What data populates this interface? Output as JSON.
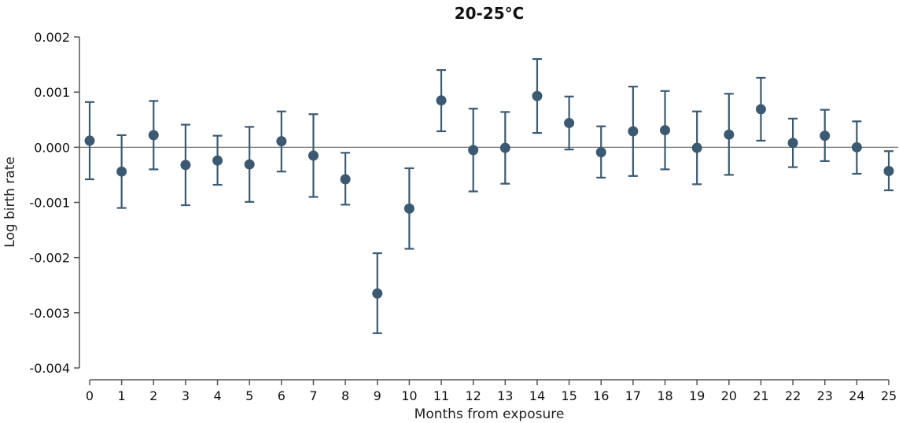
{
  "chart_data": {
    "type": "scatter",
    "title": "20-25°C",
    "xlabel": "Months from exposure",
    "ylabel": "Log birth rate",
    "x": [
      0,
      1,
      2,
      3,
      4,
      5,
      6,
      7,
      8,
      9,
      10,
      11,
      12,
      13,
      14,
      15,
      16,
      17,
      18,
      19,
      20,
      21,
      22,
      23,
      24,
      25
    ],
    "y": [
      0.00012,
      -0.00044,
      0.00022,
      -0.00032,
      -0.00024,
      -0.00031,
      0.00011,
      -0.00015,
      -0.00058,
      -0.00265,
      -0.00111,
      0.00085,
      -5e-05,
      -1e-05,
      0.00093,
      0.00044,
      -9e-05,
      0.00029,
      0.00031,
      -1e-05,
      0.00023,
      0.00069,
      8e-05,
      0.00021,
      0.0,
      -0.00043
    ],
    "y_lower": [
      -0.00058,
      -0.0011,
      -0.0004,
      -0.00105,
      -0.00068,
      -0.00099,
      -0.00044,
      -0.0009,
      -0.00104,
      -0.00337,
      -0.00184,
      0.00029,
      -0.0008,
      -0.00066,
      0.00026,
      -4e-05,
      -0.00055,
      -0.00052,
      -0.0004,
      -0.00067,
      -0.0005,
      0.00012,
      -0.00036,
      -0.00025,
      -0.00048,
      -0.00078
    ],
    "y_upper": [
      0.00082,
      0.00022,
      0.00084,
      0.00041,
      0.00021,
      0.00037,
      0.00065,
      0.0006,
      -0.0001,
      -0.00192,
      -0.00038,
      0.0014,
      0.0007,
      0.00064,
      0.0016,
      0.00092,
      0.00038,
      0.0011,
      0.00102,
      0.00065,
      0.00097,
      0.00126,
      0.00052,
      0.00068,
      0.00047,
      -7e-05
    ],
    "ylim": [
      -0.004,
      0.002
    ],
    "xlim": [
      0,
      25
    ],
    "yticks": [
      0.002,
      0.001,
      0.0,
      -0.001,
      -0.002,
      -0.003,
      -0.004
    ],
    "ytick_labels": [
      "0.002",
      "0.001",
      "0.000",
      "-0.001",
      "-0.002",
      "-0.003",
      "-0.004"
    ],
    "xtick_labels": [
      "0",
      "1",
      "2",
      "3",
      "4",
      "5",
      "6",
      "7",
      "8",
      "9",
      "10",
      "11",
      "12",
      "13",
      "14",
      "15",
      "16",
      "17",
      "18",
      "19",
      "20",
      "21",
      "22",
      "23",
      "24",
      "25"
    ],
    "zero_line": true,
    "grid": false,
    "marker_color": "#3b5a72",
    "axis_color": "#555555"
  }
}
